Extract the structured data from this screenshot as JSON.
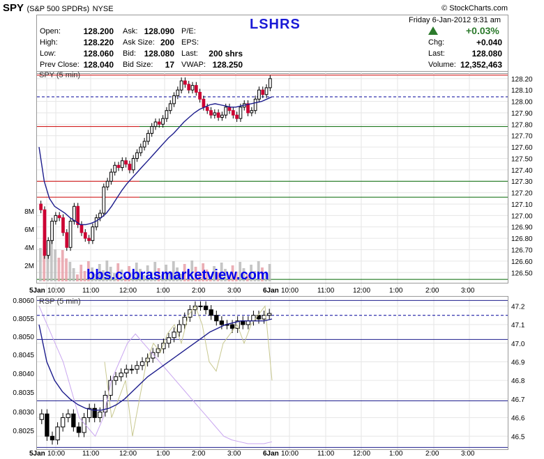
{
  "header": {
    "symbol": "SPY",
    "name": "(S&P 500 SPDRs)",
    "exchange": "NYSE",
    "copyright": "© StockCharts.com",
    "datetime": "Friday  6-Jan-2012  9:31 am",
    "title_overlay": "LSHRS",
    "change_pct": "+0.03%",
    "quote": {
      "open_label": "Open:",
      "open": "128.200",
      "high_label": "High:",
      "high": "128.220",
      "low_label": "Low:",
      "low": "128.060",
      "prev_close_label": "Prev Close:",
      "prev_close": "128.040",
      "ask_label": "Ask:",
      "ask": "128.090",
      "ask_size_label": "Ask Size:",
      "ask_size": "200",
      "bid_label": "Bid:",
      "bid": "128.080",
      "bid_size_label": "Bid Size:",
      "bid_size": "17",
      "pe_label": "P/E:",
      "eps_label": "EPS:",
      "last_label": "Last:",
      "last_shares": "200 shrs",
      "vwap_label": "VWAP:",
      "vwap": "128.250",
      "chg_label": "Chg:",
      "chg": "+0.040",
      "last2_label": "Last:",
      "last2": "128.080",
      "volume_label": "Volume:",
      "volume": "12,352,463"
    }
  },
  "watermark": "bbs.cobrasmarketview.com",
  "colors": {
    "up": "#000000",
    "down": "#cc0033",
    "ma": "#1c1c8c",
    "hline_red": "#cc0000",
    "hline_green": "#006600",
    "dashed": "#000099",
    "volume": "#999999",
    "volume_down": "#e8a0a8"
  },
  "chart_data": [
    {
      "type": "candlestick",
      "title": "SPY (5 min)",
      "y_ticks": [
        "128.20",
        "128.10",
        "128.00",
        "127.90",
        "127.80",
        "127.70",
        "127.60",
        "127.50",
        "127.40",
        "127.30",
        "127.20",
        "127.10",
        "127.00",
        "126.90",
        "126.80",
        "126.70",
        "126.60",
        "126.50"
      ],
      "y_range": [
        126.41,
        128.26
      ],
      "x_ticks": [
        "5Jan",
        "10:00",
        "11:00",
        "12:00",
        "1:00",
        "2:00",
        "3:00",
        "6Jan",
        "10:00",
        "11:00",
        "12:00",
        "1:00",
        "2:00",
        "3:00"
      ],
      "volume_ticks": [
        "8M",
        "6M",
        "4M",
        "2M"
      ],
      "horizontal_lines": [
        {
          "y": 128.23,
          "color": "red"
        },
        {
          "y": 127.78,
          "color": "red-green"
        },
        {
          "y": 127.3,
          "color": "red-green"
        },
        {
          "y": 127.16,
          "color": "red-green"
        },
        {
          "y": 126.44,
          "color": "green"
        }
      ],
      "dashed_line": 128.04,
      "close_series": [
        127.05,
        126.65,
        126.78,
        126.95,
        127.0,
        126.98,
        126.85,
        126.72,
        126.95,
        127.08,
        126.92,
        126.85,
        126.8,
        126.78,
        126.9,
        126.98,
        127.02,
        127.25,
        127.3,
        127.38,
        127.44,
        127.42,
        127.48,
        127.45,
        127.4,
        127.5,
        127.55,
        127.6,
        127.65,
        127.72,
        127.78,
        127.82,
        127.8,
        127.85,
        127.92,
        127.98,
        128.05,
        128.1,
        128.18,
        128.15,
        128.1,
        128.14,
        128.08,
        128.02,
        127.95,
        127.92,
        127.88,
        127.9,
        127.86,
        127.88,
        127.95,
        127.92,
        127.88,
        127.85,
        127.95,
        127.98,
        127.9,
        127.92,
        128.02,
        128.1,
        128.06,
        128.12,
        128.2
      ],
      "ma_series": [
        127.6,
        127.3,
        127.15,
        127.08,
        127.05,
        127.02,
        126.98,
        126.95,
        126.92,
        126.92,
        126.93,
        126.95,
        126.98,
        127.02,
        127.08,
        127.15,
        127.22,
        127.28,
        127.33,
        127.38,
        127.43,
        127.48,
        127.53,
        127.58,
        127.63,
        127.68,
        127.72,
        127.77,
        127.82,
        127.86,
        127.9,
        127.93,
        127.95,
        127.97,
        127.98,
        127.97,
        127.96,
        127.95,
        127.95,
        127.96,
        127.97,
        127.98,
        127.99,
        128.0,
        128.02,
        128.04
      ]
    },
    {
      "type": "candlestick",
      "title": "RSP (5 min)",
      "y_left_ticks": [
        "0.8060",
        "0.8055",
        "0.8050",
        "0.8045",
        "0.8040",
        "0.8035",
        "0.8030",
        "0.8025"
      ],
      "y_right_ticks": [
        "47.2",
        "47.1",
        "47.0",
        "46.9",
        "46.8",
        "46.7",
        "46.6",
        "46.5"
      ],
      "y_range": [
        46.43,
        47.25
      ],
      "x_ticks": [
        "5Jan",
        "10:00",
        "11:00",
        "12:00",
        "1:00",
        "2:00",
        "3:00",
        "6Jan",
        "10:00",
        "11:00",
        "12:00",
        "1:00",
        "2:00",
        "3:00"
      ],
      "horizontal_lines": [
        47.23,
        47.02,
        46.69,
        46.44
      ],
      "dashed_line": 47.15,
      "close_series": [
        46.62,
        46.5,
        46.48,
        46.55,
        46.6,
        46.62,
        46.55,
        46.52,
        46.6,
        46.65,
        46.6,
        46.63,
        46.72,
        46.8,
        46.82,
        46.84,
        46.86,
        46.86,
        46.88,
        46.9,
        46.92,
        46.95,
        46.97,
        47.0,
        47.03,
        47.06,
        47.1,
        47.14,
        47.18,
        47.2,
        47.2,
        47.18,
        47.15,
        47.12,
        47.1,
        47.1,
        47.08,
        47.12,
        47.1,
        47.12,
        47.15,
        47.13,
        47.15,
        47.16
      ],
      "ma_series": [
        47.1,
        46.9,
        46.8,
        46.74,
        46.7,
        46.67,
        46.65,
        46.64,
        46.64,
        46.65,
        46.67,
        46.7,
        46.74,
        46.78,
        46.82,
        46.85,
        46.88,
        46.91,
        46.94,
        46.97,
        47.0,
        47.03,
        47.06,
        47.08,
        47.1,
        47.11,
        47.12,
        47.12,
        47.12,
        47.12,
        47.13
      ]
    }
  ]
}
